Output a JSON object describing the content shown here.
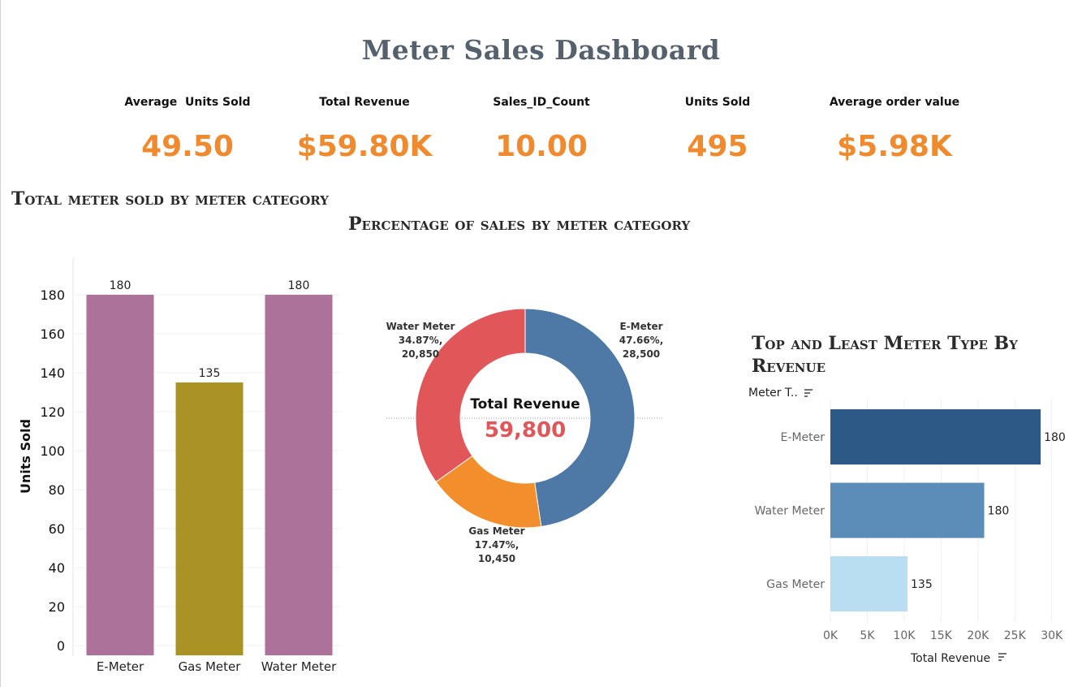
{
  "dashboard": {
    "title": "Meter Sales Dashboard"
  },
  "kpis": [
    {
      "label": "Average  Units Sold",
      "value": "49.50"
    },
    {
      "label": "Total Revenue",
      "value": "$59.80K"
    },
    {
      "label": "Sales_ID_Count",
      "value": "10.00"
    },
    {
      "label": "Units Sold",
      "value": "495"
    },
    {
      "label": "Average order value",
      "value": "$5.98K"
    }
  ],
  "colors": {
    "kpi_value": "#ef8a2f",
    "title": "#56616e"
  },
  "chart_data": [
    {
      "type": "bar",
      "title": "Total meter sold by meter category",
      "categories": [
        "E-Meter",
        "Gas Meter",
        "Water Meter"
      ],
      "values": [
        180,
        135,
        180
      ],
      "value_labels": [
        "180",
        "135",
        "180"
      ],
      "colors": [
        "#ad7299",
        "#ab9224",
        "#ad7299"
      ],
      "xlabel": "",
      "ylabel": "Units Sold",
      "ylim": [
        0,
        190
      ],
      "yticks": [
        0,
        20,
        40,
        60,
        80,
        100,
        120,
        140,
        160,
        180
      ],
      "grid": true
    },
    {
      "type": "pie",
      "title": "Percentage of sales by meter category",
      "center_label": "Total Revenue",
      "center_value": "59,800",
      "slices": [
        {
          "name": "E-Meter",
          "value": 28500,
          "percent_label": "47.66%,",
          "value_label": "28,500",
          "color": "#4e79a7"
        },
        {
          "name": "Gas Meter",
          "value": 10450,
          "percent_label": "17.47%,",
          "value_label": "10,450",
          "color": "#f28e2b"
        },
        {
          "name": "Water Meter",
          "value": 20850,
          "percent_label": "34.87%,",
          "value_label": "20,850",
          "color": "#e15759"
        }
      ]
    },
    {
      "type": "bar",
      "orientation": "horizontal",
      "title": "Top and Least Meter Type By Revenue",
      "dimension_label": "Meter T..",
      "categories": [
        "E-Meter",
        "Water Meter",
        "Gas Meter"
      ],
      "values": [
        28500,
        20850,
        10450
      ],
      "value_labels": [
        "180",
        "180",
        "135"
      ],
      "colors": [
        "#2c5985",
        "#5b8db8",
        "#b9ddf1"
      ],
      "xlabel": "Total Revenue",
      "xlim": [
        0,
        33000
      ],
      "xticks": [
        0,
        5000,
        10000,
        15000,
        20000,
        25000,
        30000
      ],
      "xtick_labels": [
        "0K",
        "5K",
        "10K",
        "15K",
        "20K",
        "25K",
        "30K"
      ],
      "grid": true
    }
  ]
}
